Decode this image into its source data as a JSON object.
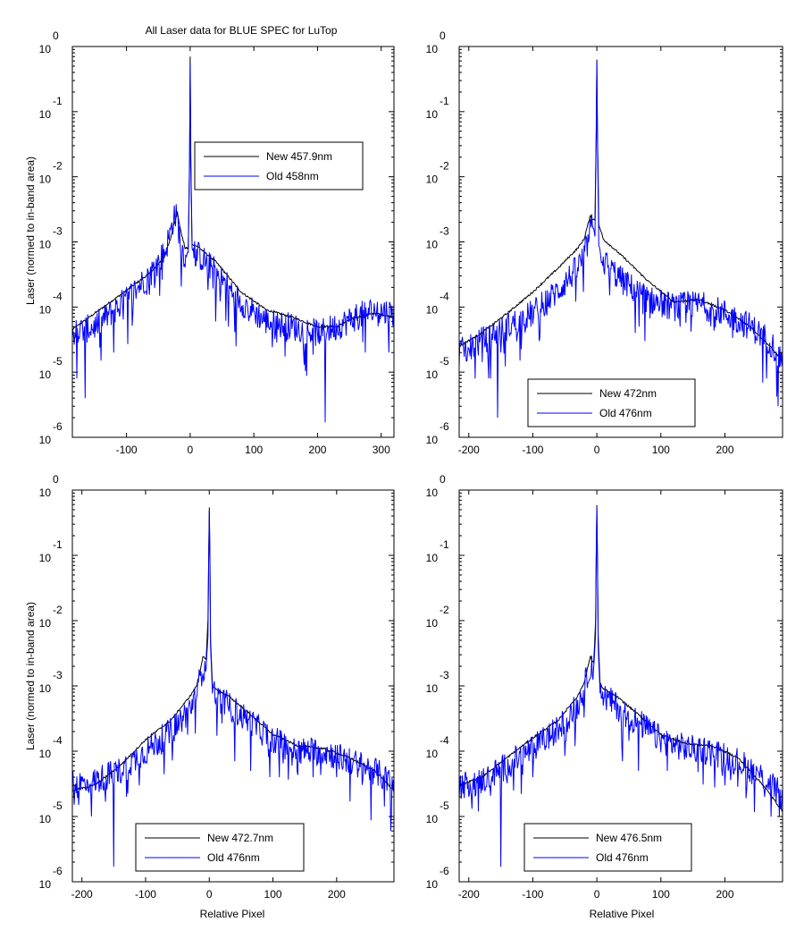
{
  "figure": {
    "title": "All Laser data for BLUE SPEC for LuTop",
    "ylabel": "Laser (normed to in-band area)",
    "xlabel": "Relative Pixel"
  },
  "colors": {
    "new": "#000000",
    "old": "#0000ff",
    "axes": "#000000",
    "background": "#ffffff"
  },
  "chart_data": [
    {
      "type": "line",
      "title": "All Laser data for BLUE SPEC for LuTop",
      "xlabel": "",
      "ylabel": "Laser (normed to in-band area)",
      "xlim": [
        -185,
        320
      ],
      "ylim": [
        1e-06,
        1
      ],
      "yscale": "log",
      "xticks": [
        -100,
        0,
        100,
        200,
        300
      ],
      "legend_position": "upper-center",
      "series": [
        {
          "name": "New 457.9nm",
          "color": "#000000",
          "noisy": false,
          "x": [
            -185,
            -150,
            -100,
            -60,
            -40,
            -30,
            -25,
            -20,
            -15,
            -8,
            -3,
            -1,
            0,
            1,
            3,
            8,
            15,
            40,
            80,
            120,
            160,
            200,
            230,
            260,
            290,
            320
          ],
          "y": [
            4.5e-05,
            8e-05,
            0.00018,
            0.00035,
            0.0006,
            0.0012,
            0.002,
            0.0028,
            0.0015,
            0.0008,
            0.0008,
            0.02,
            0.7,
            0.02,
            0.0009,
            0.0009,
            0.0008,
            0.0005,
            0.00017,
            9e-05,
            7e-05,
            5e-05,
            5e-05,
            7e-05,
            8e-05,
            7e-05
          ]
        },
        {
          "name": "Old 458nm",
          "color": "#0000ff",
          "noisy": true,
          "x": [
            -185,
            -150,
            -100,
            -60,
            -40,
            -30,
            -25,
            -20,
            -15,
            -8,
            -3,
            -1,
            0,
            1,
            3,
            8,
            15,
            40,
            80,
            120,
            160,
            200,
            230,
            260,
            290,
            320
          ],
          "y": [
            4e-05,
            5e-05,
            0.00013,
            0.00035,
            0.0007,
            0.0015,
            0.0027,
            0.0022,
            0.0009,
            0.0006,
            0.0007,
            0.015,
            0.55,
            0.015,
            0.0008,
            0.0007,
            0.0006,
            0.00035,
            0.00012,
            6e-05,
            5e-05,
            4e-05,
            5e-05,
            7e-05,
            9e-05,
            8e-05
          ],
          "dips": [
            [
              -178,
              8e-06
            ],
            [
              -165,
              4e-06
            ],
            [
              -140,
              1.5e-05
            ],
            [
              -120,
              2e-05
            ],
            [
              40,
              6e-05
            ],
            [
              60,
              5e-05
            ],
            [
              72,
              2.5e-05
            ],
            [
              145,
              4e-05
            ],
            [
              175,
              4e-05
            ],
            [
              205,
              3e-05
            ],
            [
              212,
              1.7e-06
            ],
            [
              275,
              2e-05
            ],
            [
              312,
              2e-05
            ]
          ]
        }
      ]
    },
    {
      "type": "line",
      "title": "",
      "xlabel": "",
      "ylabel": "",
      "xlim": [
        -215,
        290
      ],
      "ylim": [
        1e-06,
        1
      ],
      "yscale": "log",
      "xticks": [
        -200,
        -100,
        0,
        100,
        200
      ],
      "legend_position": "lower-center",
      "series": [
        {
          "name": "New 472nm",
          "color": "#000000",
          "noisy": false,
          "x": [
            -215,
            -180,
            -140,
            -100,
            -60,
            -30,
            -20,
            -15,
            -10,
            -6,
            -3,
            -1,
            0,
            1,
            3,
            6,
            10,
            20,
            40,
            80,
            120,
            160,
            200,
            240,
            270,
            290
          ],
          "y": [
            2.5e-05,
            4e-05,
            8e-05,
            0.00017,
            0.0004,
            0.0008,
            0.0011,
            0.0017,
            0.0025,
            0.0022,
            0.0022,
            0.05,
            0.65,
            0.05,
            0.0018,
            0.0015,
            0.0011,
            0.0009,
            0.0006,
            0.00025,
            0.00012,
            0.00013,
            9e-05,
            5e-05,
            2.5e-05,
            1.5e-05
          ]
        },
        {
          "name": "Old 476nm",
          "color": "#0000ff",
          "noisy": true,
          "x": [
            -215,
            -180,
            -140,
            -100,
            -60,
            -30,
            -20,
            -15,
            -10,
            -6,
            -3,
            -1,
            0,
            1,
            3,
            6,
            10,
            20,
            40,
            80,
            120,
            160,
            200,
            240,
            270,
            290
          ],
          "y": [
            2e-05,
            3e-05,
            5e-05,
            8e-05,
            0.00018,
            0.0004,
            0.0006,
            0.0009,
            0.0015,
            0.0018,
            0.0012,
            0.04,
            0.6,
            0.04,
            0.0009,
            0.0007,
            0.0005,
            0.0004,
            0.00025,
            0.00013,
            0.0001,
            0.00011,
            8e-05,
            5e-05,
            3e-05,
            1.5e-05
          ],
          "dips": [
            [
              -190,
              8e-06
            ],
            [
              -170,
              1.5e-05
            ],
            [
              -150,
              2e-05
            ],
            [
              -155,
              2e-06
            ],
            [
              -120,
              1.5e-05
            ],
            [
              -90,
              3e-05
            ],
            [
              60,
              4e-05
            ],
            [
              75,
              3e-05
            ],
            [
              130,
              5e-05
            ],
            [
              265,
              8e-06
            ],
            [
              283,
              3e-06
            ]
          ]
        }
      ]
    },
    {
      "type": "line",
      "title": "",
      "xlabel": "Relative Pixel",
      "ylabel": "Laser (normed to in-band area)",
      "xlim": [
        -215,
        290
      ],
      "ylim": [
        1e-06,
        1
      ],
      "yscale": "log",
      "xticks": [
        -200,
        -100,
        0,
        100,
        200
      ],
      "legend_position": "lower-center",
      "series": [
        {
          "name": "New 472.7nm",
          "color": "#000000",
          "noisy": false,
          "x": [
            -215,
            -180,
            -140,
            -100,
            -60,
            -30,
            -20,
            -15,
            -10,
            -5,
            -2,
            -1,
            0,
            1,
            2,
            5,
            10,
            30,
            60,
            100,
            140,
            180,
            220,
            260,
            290
          ],
          "y": [
            2.5e-05,
            3e-05,
            6e-05,
            0.00015,
            0.0003,
            0.0007,
            0.001,
            0.0016,
            0.0028,
            0.0025,
            0.01,
            0.1,
            0.55,
            0.1,
            0.005,
            0.001,
            0.0009,
            0.0007,
            0.0004,
            0.00018,
            0.00012,
            0.00011,
            8e-05,
            5e-05,
            2.5e-05
          ]
        },
        {
          "name": "Old 476nm",
          "color": "#0000ff",
          "noisy": true,
          "x": [
            -215,
            -180,
            -140,
            -100,
            -60,
            -30,
            -20,
            -15,
            -10,
            -5,
            -2,
            -1,
            0,
            1,
            2,
            5,
            10,
            30,
            60,
            100,
            140,
            180,
            220,
            260,
            290
          ],
          "y": [
            3e-05,
            3.5e-05,
            5e-05,
            0.0001,
            0.0002,
            0.00045,
            0.0008,
            0.0012,
            0.002,
            0.0018,
            0.006,
            0.08,
            0.5,
            0.08,
            0.004,
            0.0008,
            0.0007,
            0.0005,
            0.0003,
            0.00015,
            0.0001,
            0.0001,
            7e-05,
            5e-05,
            3e-05
          ],
          "dips": [
            [
              -205,
              1.5e-05
            ],
            [
              -195,
              3e-05
            ],
            [
              -185,
              1e-05
            ],
            [
              -150,
              1.7e-06
            ],
            [
              -130,
              2e-05
            ],
            [
              -110,
              3e-05
            ],
            [
              40,
              7e-05
            ],
            [
              65,
              5e-05
            ],
            [
              95,
              4e-05
            ],
            [
              130,
              6e-05
            ],
            [
              200,
              4e-05
            ],
            [
              285,
              6e-06
            ]
          ]
        }
      ]
    },
    {
      "type": "line",
      "title": "",
      "xlabel": "Relative Pixel",
      "ylabel": "",
      "xlim": [
        -215,
        290
      ],
      "ylim": [
        1e-06,
        1
      ],
      "yscale": "log",
      "xticks": [
        -200,
        -100,
        0,
        100,
        200
      ],
      "legend_position": "lower-center",
      "series": [
        {
          "name": "New 476.5nm",
          "color": "#000000",
          "noisy": false,
          "x": [
            -215,
            -180,
            -140,
            -100,
            -60,
            -30,
            -20,
            -15,
            -10,
            -5,
            -2,
            -1,
            0,
            1,
            2,
            5,
            10,
            30,
            60,
            100,
            140,
            180,
            220,
            260,
            290
          ],
          "y": [
            3e-05,
            4e-05,
            8e-05,
            0.00016,
            0.0003,
            0.0007,
            0.0011,
            0.0018,
            0.0028,
            0.0022,
            0.01,
            0.1,
            0.6,
            0.1,
            0.006,
            0.0011,
            0.0009,
            0.0007,
            0.0004,
            0.00018,
            0.00013,
            0.00012,
            8e-05,
            3e-05,
            1.2e-05
          ]
        },
        {
          "name": "Old 476nm",
          "color": "#0000ff",
          "noisy": true,
          "x": [
            -215,
            -180,
            -140,
            -100,
            -60,
            -30,
            -20,
            -15,
            -10,
            -5,
            -2,
            -1,
            0,
            1,
            2,
            5,
            10,
            30,
            60,
            100,
            140,
            180,
            220,
            260,
            290
          ],
          "y": [
            3e-05,
            3.5e-05,
            6e-05,
            0.00011,
            0.00022,
            0.0005,
            0.0009,
            0.0014,
            0.0022,
            0.0018,
            0.006,
            0.08,
            0.55,
            0.08,
            0.004,
            0.0008,
            0.0007,
            0.0005,
            0.0003,
            0.00015,
            0.00011,
            0.0001,
            7e-05,
            4e-05,
            2e-05
          ],
          "dips": [
            [
              -200,
              2e-05
            ],
            [
              -185,
              1.2e-05
            ],
            [
              -150,
              1.7e-06
            ],
            [
              -130,
              2.5e-05
            ],
            [
              -100,
              4e-05
            ],
            [
              40,
              7e-05
            ],
            [
              65,
              5e-05
            ],
            [
              110,
              5e-05
            ],
            [
              200,
              3e-05
            ],
            [
              262,
              2e-05
            ],
            [
              285,
              1e-05
            ]
          ]
        }
      ]
    }
  ]
}
